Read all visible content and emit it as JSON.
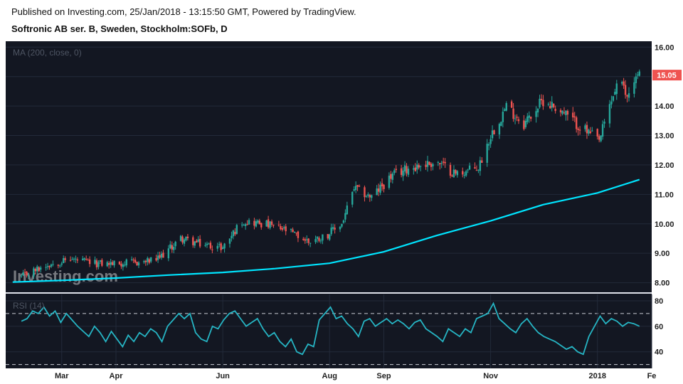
{
  "header": {
    "published": "Published on Investing.com, 25/Jan/2018 - 13:15:50 GMT, Powered by TradingView.",
    "symbol": "Softronic AB ser. B, Sweden, Stockholm:SOFb, D"
  },
  "watermark": "Investing.com",
  "colors": {
    "background": "#131722",
    "up": "#26a69a",
    "down": "#ef5350",
    "ma": "#00e5ff",
    "rsi": "#26b5c4",
    "price_badge": "#ef5350"
  },
  "chart_data": [
    {
      "type": "candlestick",
      "indicator_label": "MA (200, close, 0)",
      "ylim": [
        7.7,
        16.2
      ],
      "y_ticks": [
        "16.00",
        "15.00",
        "14.00",
        "13.00",
        "12.00",
        "11.00",
        "10.00",
        "9.00",
        "8.00"
      ],
      "last_price": "15.05",
      "x_labels": [
        "Mar",
        "Apr",
        "Jun",
        "Aug",
        "Sep",
        "Nov",
        "2018",
        "Fe"
      ],
      "close_path": [
        {
          "date": "2017-02-06",
          "close": 8.2
        },
        {
          "date": "2017-02-20",
          "close": 8.6
        },
        {
          "date": "2017-03-06",
          "close": 8.8
        },
        {
          "date": "2017-03-20",
          "close": 8.65
        },
        {
          "date": "2017-04-03",
          "close": 8.65
        },
        {
          "date": "2017-04-17",
          "close": 8.7
        },
        {
          "date": "2017-04-25",
          "close": 8.8
        },
        {
          "date": "2017-05-08",
          "close": 9.5
        },
        {
          "date": "2017-05-20",
          "close": 9.3
        },
        {
          "date": "2017-06-01",
          "close": 9.2
        },
        {
          "date": "2017-06-12",
          "close": 10.1
        },
        {
          "date": "2017-06-25",
          "close": 10.0
        },
        {
          "date": "2017-07-08",
          "close": 9.75
        },
        {
          "date": "2017-07-20",
          "close": 9.4
        },
        {
          "date": "2017-07-30",
          "close": 9.6
        },
        {
          "date": "2017-08-08",
          "close": 10.0
        },
        {
          "date": "2017-08-15",
          "close": 11.2
        },
        {
          "date": "2017-08-25",
          "close": 10.9
        },
        {
          "date": "2017-09-05",
          "close": 11.6
        },
        {
          "date": "2017-09-15",
          "close": 11.9
        },
        {
          "date": "2017-10-01",
          "close": 12.1
        },
        {
          "date": "2017-10-12",
          "close": 11.7
        },
        {
          "date": "2017-10-25",
          "close": 11.9
        },
        {
          "date": "2017-11-01",
          "close": 13.0
        },
        {
          "date": "2017-11-10",
          "close": 14.0
        },
        {
          "date": "2017-11-20",
          "close": 13.4
        },
        {
          "date": "2017-12-01",
          "close": 14.2
        },
        {
          "date": "2017-12-10",
          "close": 13.9
        },
        {
          "date": "2017-12-20",
          "close": 13.4
        },
        {
          "date": "2018-01-02",
          "close": 12.8
        },
        {
          "date": "2018-01-08",
          "close": 14.0
        },
        {
          "date": "2018-01-13",
          "close": 14.9
        },
        {
          "date": "2018-01-18",
          "close": 14.3
        },
        {
          "date": "2018-01-21",
          "close": 14.9
        },
        {
          "date": "2018-01-25",
          "close": 15.05
        }
      ],
      "ma_200": [
        {
          "date": "2017-02-01",
          "value": 8.02
        },
        {
          "date": "2017-03-01",
          "value": 8.08
        },
        {
          "date": "2017-04-01",
          "value": 8.16
        },
        {
          "date": "2017-05-01",
          "value": 8.26
        },
        {
          "date": "2017-06-01",
          "value": 8.35
        },
        {
          "date": "2017-07-01",
          "value": 8.48
        },
        {
          "date": "2017-08-01",
          "value": 8.66
        },
        {
          "date": "2017-09-01",
          "value": 9.05
        },
        {
          "date": "2017-10-01",
          "value": 9.6
        },
        {
          "date": "2017-11-01",
          "value": 10.1
        },
        {
          "date": "2017-12-01",
          "value": 10.65
        },
        {
          "date": "2018-01-01",
          "value": 11.05
        },
        {
          "date": "2018-01-25",
          "value": 11.5
        }
      ]
    },
    {
      "type": "line",
      "indicator_label": "RSI (14)",
      "ylim": [
        27,
        85
      ],
      "y_ticks": [
        "80",
        "60",
        "40"
      ],
      "bands": [
        70,
        30
      ],
      "series": [
        {
          "values": [
            64,
            66,
            72,
            70,
            75,
            68,
            72,
            63,
            70,
            65,
            60,
            56,
            52,
            60,
            55,
            48,
            56,
            50,
            44,
            53,
            48,
            55,
            52,
            58,
            55,
            48,
            60,
            65,
            70,
            66,
            70,
            55,
            50,
            48,
            60,
            58,
            65,
            70,
            72,
            66,
            60,
            63,
            66,
            58,
            52,
            55,
            48,
            44,
            50,
            40,
            38,
            46,
            44,
            65,
            70,
            75,
            66,
            68,
            62,
            58,
            52,
            64,
            66,
            60,
            63,
            66,
            62,
            65,
            62,
            58,
            63,
            65,
            58,
            55,
            52,
            48,
            58,
            55,
            52,
            58,
            55,
            66,
            68,
            70,
            78,
            66,
            62,
            58,
            55,
            62,
            66,
            60,
            55,
            52,
            50,
            48,
            45,
            42,
            44,
            40,
            38,
            52,
            60,
            68,
            62,
            66,
            64,
            60,
            63,
            62,
            60
          ]
        }
      ]
    }
  ]
}
